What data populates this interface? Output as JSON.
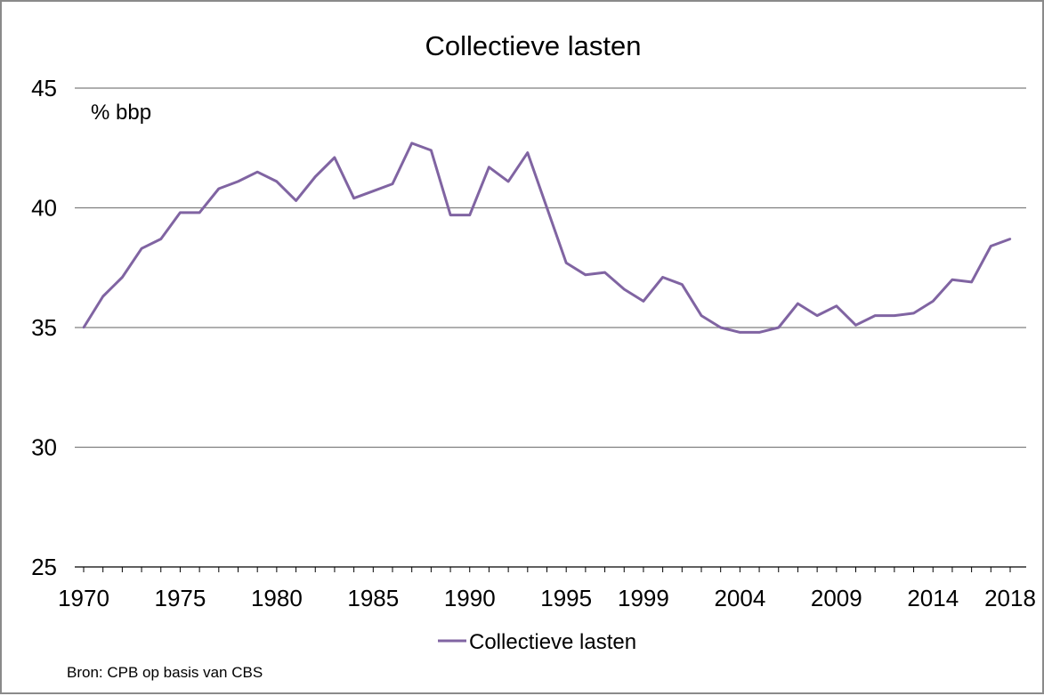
{
  "chart_data": {
    "type": "line",
    "title": "Collectieve lasten",
    "ylabel": "% bbp",
    "xlabel": "",
    "ylim": [
      25,
      45
    ],
    "yticks": [
      25,
      30,
      35,
      40,
      45
    ],
    "xlim": [
      1970,
      2018
    ],
    "xticks": [
      1970,
      1975,
      1980,
      1985,
      1990,
      1995,
      1999,
      2004,
      2009,
      2014,
      2018
    ],
    "grid": "horizontal",
    "legend": "bottom-center",
    "colors": {
      "series": "#8064a2",
      "grid": "#7f7f7f"
    },
    "series": [
      {
        "name": "Collectieve lasten",
        "x": [
          1970,
          1971,
          1972,
          1973,
          1974,
          1975,
          1976,
          1977,
          1978,
          1979,
          1980,
          1981,
          1982,
          1983,
          1984,
          1985,
          1986,
          1987,
          1988,
          1989,
          1990,
          1991,
          1992,
          1993,
          1994,
          1995,
          1996,
          1997,
          1998,
          1999,
          2000,
          2001,
          2002,
          2003,
          2004,
          2005,
          2006,
          2007,
          2008,
          2009,
          2010,
          2011,
          2012,
          2013,
          2014,
          2015,
          2016,
          2017,
          2018
        ],
        "values": [
          35.0,
          36.3,
          37.1,
          38.3,
          38.7,
          39.8,
          39.8,
          40.8,
          41.1,
          41.5,
          41.1,
          40.3,
          41.3,
          42.1,
          40.4,
          40.7,
          41.0,
          42.7,
          42.4,
          39.7,
          39.7,
          41.7,
          41.1,
          42.3,
          40.0,
          37.7,
          37.2,
          37.3,
          36.6,
          36.1,
          37.1,
          36.8,
          35.5,
          35.0,
          34.8,
          34.8,
          35.0,
          36.0,
          35.5,
          35.9,
          35.1,
          35.5,
          35.5,
          35.6,
          36.1,
          37.0,
          36.9,
          38.4,
          38.7
        ]
      }
    ]
  },
  "source": "Bron: CPB op basis van CBS"
}
